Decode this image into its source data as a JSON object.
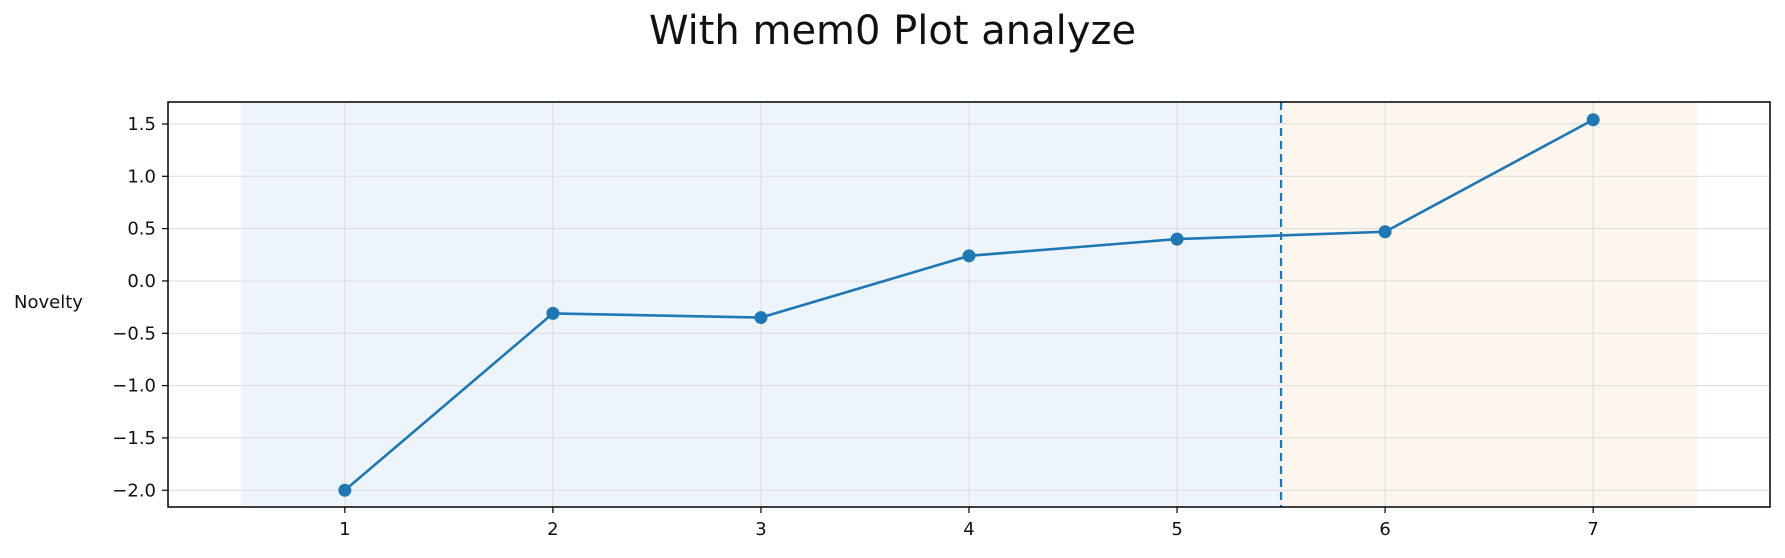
{
  "colors": {
    "line": "#1f77b4",
    "region_before": "#eef4fb",
    "region_after": "#fdf6ee",
    "grid": "#dcdcdc",
    "axis": "#000000"
  },
  "chart_data": {
    "type": "line",
    "title": "With mem0 Plot analyze",
    "xlabel": "",
    "ylabel": "Novelty",
    "x": [
      1,
      2,
      3,
      4,
      5,
      6,
      7
    ],
    "series": [
      {
        "values": [
          -2.0,
          -0.31,
          -0.35,
          0.24,
          0.4,
          0.47,
          1.54
        ]
      }
    ],
    "xlim": [
      0.15,
      7.85
    ],
    "ylim": [
      -2.16,
      1.71
    ],
    "x_ticks": [
      1,
      2,
      3,
      4,
      5,
      6,
      7
    ],
    "y_ticks": [
      -2.0,
      -1.5,
      -1.0,
      -0.5,
      0.0,
      0.5,
      1.0,
      1.5
    ],
    "y_tick_labels": [
      "−2.0",
      "−1.5",
      "−1.0",
      "−0.5",
      "0.0",
      "0.5",
      "1.0",
      "1.5"
    ],
    "vline": {
      "x": 5.5,
      "style": "dashed"
    },
    "shaded_regions": [
      {
        "from": 0.5,
        "to": 5.5
      },
      {
        "from": 5.5,
        "to": 7.5
      }
    ],
    "grid": true,
    "markers": "circle"
  }
}
